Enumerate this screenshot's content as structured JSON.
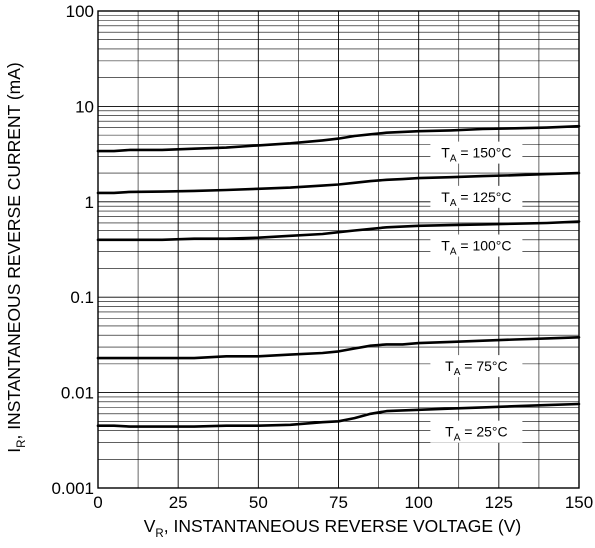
{
  "chart_data": {
    "type": "line",
    "title": "",
    "xlabel": {
      "symbol": "V",
      "subscript": "R",
      "text": ", INSTANTANEOUS REVERSE VOLTAGE (V)"
    },
    "ylabel": {
      "symbol": "I",
      "subscript": "R",
      "text": ", INSTANTANEOUS REVERSE CURRENT (mA)"
    },
    "xlim": [
      0,
      150
    ],
    "ylim": [
      0.001,
      100
    ],
    "yscale": "log",
    "grid": true,
    "legend": "none",
    "x_ticks": [
      {
        "value": 0,
        "label": "0"
      },
      {
        "value": 25,
        "label": "25"
      },
      {
        "value": 50,
        "label": "50"
      },
      {
        "value": 75,
        "label": "75"
      },
      {
        "value": 100,
        "label": "100"
      },
      {
        "value": 125,
        "label": "125"
      },
      {
        "value": 150,
        "label": "150"
      }
    ],
    "y_ticks": [
      {
        "value": 0.001,
        "label": "0.001"
      },
      {
        "value": 0.01,
        "label": "0.01"
      },
      {
        "value": 0.1,
        "label": "0.1"
      },
      {
        "value": 1,
        "label": "1"
      },
      {
        "value": 10,
        "label": "10"
      },
      {
        "value": 100,
        "label": "100"
      }
    ],
    "series": [
      {
        "name": "T_A = 150°C",
        "label_symbol": "T",
        "label_subscript": "A",
        "label_text": " = 150°C",
        "label_at": [
          118,
          3.2
        ],
        "x": [
          0,
          5,
          10,
          20,
          30,
          40,
          50,
          60,
          70,
          75,
          80,
          85,
          90,
          95,
          100,
          110,
          120,
          130,
          140,
          150
        ],
        "y": [
          3.4,
          3.4,
          3.5,
          3.5,
          3.6,
          3.7,
          3.9,
          4.1,
          4.4,
          4.6,
          4.9,
          5.1,
          5.3,
          5.4,
          5.5,
          5.6,
          5.8,
          5.9,
          6.0,
          6.2
        ]
      },
      {
        "name": "T_A = 125°C",
        "label_symbol": "T",
        "label_subscript": "A",
        "label_text": " = 125°C",
        "label_at": [
          118,
          1.1
        ],
        "x": [
          0,
          5,
          10,
          20,
          30,
          40,
          50,
          60,
          70,
          75,
          80,
          85,
          90,
          95,
          100,
          110,
          120,
          130,
          140,
          150
        ],
        "y": [
          1.24,
          1.24,
          1.27,
          1.28,
          1.3,
          1.33,
          1.37,
          1.41,
          1.48,
          1.52,
          1.58,
          1.65,
          1.7,
          1.73,
          1.77,
          1.81,
          1.86,
          1.9,
          1.95,
          2.0
        ]
      },
      {
        "name": "T_A = 100°C",
        "label_symbol": "T",
        "label_subscript": "A",
        "label_text": " = 100°C",
        "label_at": [
          118,
          0.34
        ],
        "x": [
          0,
          5,
          10,
          20,
          30,
          40,
          50,
          60,
          70,
          75,
          80,
          85,
          90,
          95,
          100,
          110,
          120,
          130,
          140,
          150
        ],
        "y": [
          0.4,
          0.4,
          0.4,
          0.4,
          0.41,
          0.41,
          0.42,
          0.44,
          0.46,
          0.48,
          0.5,
          0.52,
          0.54,
          0.55,
          0.56,
          0.57,
          0.58,
          0.59,
          0.6,
          0.62
        ]
      },
      {
        "name": "T_A = 75°C",
        "label_symbol": "T",
        "label_subscript": "A",
        "label_text": " = 75°C",
        "label_at": [
          118,
          0.0185
        ],
        "x": [
          0,
          5,
          10,
          20,
          30,
          40,
          50,
          60,
          70,
          75,
          80,
          85,
          90,
          95,
          100,
          110,
          120,
          130,
          140,
          150
        ],
        "y": [
          0.023,
          0.023,
          0.023,
          0.023,
          0.023,
          0.024,
          0.024,
          0.025,
          0.026,
          0.027,
          0.029,
          0.031,
          0.032,
          0.032,
          0.033,
          0.034,
          0.035,
          0.036,
          0.037,
          0.038
        ]
      },
      {
        "name": "T_A = 25°C",
        "label_symbol": "T",
        "label_subscript": "A",
        "label_text": " = 25°C",
        "label_at": [
          118,
          0.0038
        ],
        "x": [
          0,
          5,
          10,
          20,
          30,
          40,
          50,
          60,
          70,
          75,
          80,
          85,
          90,
          95,
          100,
          110,
          120,
          130,
          140,
          150
        ],
        "y": [
          0.0045,
          0.0045,
          0.0044,
          0.0044,
          0.0044,
          0.0045,
          0.0045,
          0.0046,
          0.0049,
          0.005,
          0.0054,
          0.006,
          0.0064,
          0.0065,
          0.0066,
          0.0068,
          0.007,
          0.0072,
          0.0074,
          0.0076
        ]
      }
    ]
  }
}
